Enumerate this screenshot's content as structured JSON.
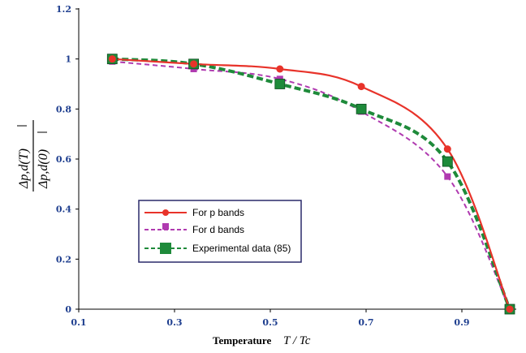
{
  "chart_data": {
    "type": "line",
    "xlabel": "Temperature",
    "xlabel_math": "T / Tc",
    "ylabel_top": "Δp,d(T)",
    "ylabel_bottom": "Δp,d(0)",
    "xlim": [
      0.1,
      1.0
    ],
    "ylim": [
      0,
      1.2
    ],
    "x_ticks": [
      "0.1",
      "0.3",
      "0.5",
      "0.7",
      "0.9"
    ],
    "y_ticks": [
      "0",
      "0.2",
      "0.4",
      "0.6",
      "0.8",
      "1",
      "1.2"
    ],
    "x_tick_values": [
      0.1,
      0.3,
      0.5,
      0.7,
      0.9
    ],
    "y_tick_values": [
      0,
      0.2,
      0.4,
      0.6,
      0.8,
      1.0,
      1.2
    ],
    "grid": false,
    "legend_position": "lower-left",
    "series": [
      {
        "name": "For p bands",
        "color": "#e8332a",
        "style": "solid",
        "marker": "circle",
        "x": [
          0.17,
          0.34,
          0.52,
          0.69,
          0.87,
          1.0
        ],
        "y": [
          1.0,
          0.98,
          0.96,
          0.89,
          0.64,
          0.0
        ]
      },
      {
        "name": "For d bands",
        "color": "#b03ab0",
        "style": "dashed",
        "marker": "square",
        "x": [
          0.17,
          0.34,
          0.52,
          0.69,
          0.87,
          1.0
        ],
        "y": [
          0.99,
          0.96,
          0.92,
          0.79,
          0.53,
          0.0
        ]
      },
      {
        "name": "Experimental data (85)",
        "color": "#1e8a3a",
        "style": "dashed-bold",
        "marker": "square-large",
        "x": [
          0.17,
          0.34,
          0.52,
          0.69,
          0.87,
          1.0
        ],
        "y": [
          1.0,
          0.98,
          0.9,
          0.8,
          0.59,
          0.0
        ]
      }
    ]
  }
}
